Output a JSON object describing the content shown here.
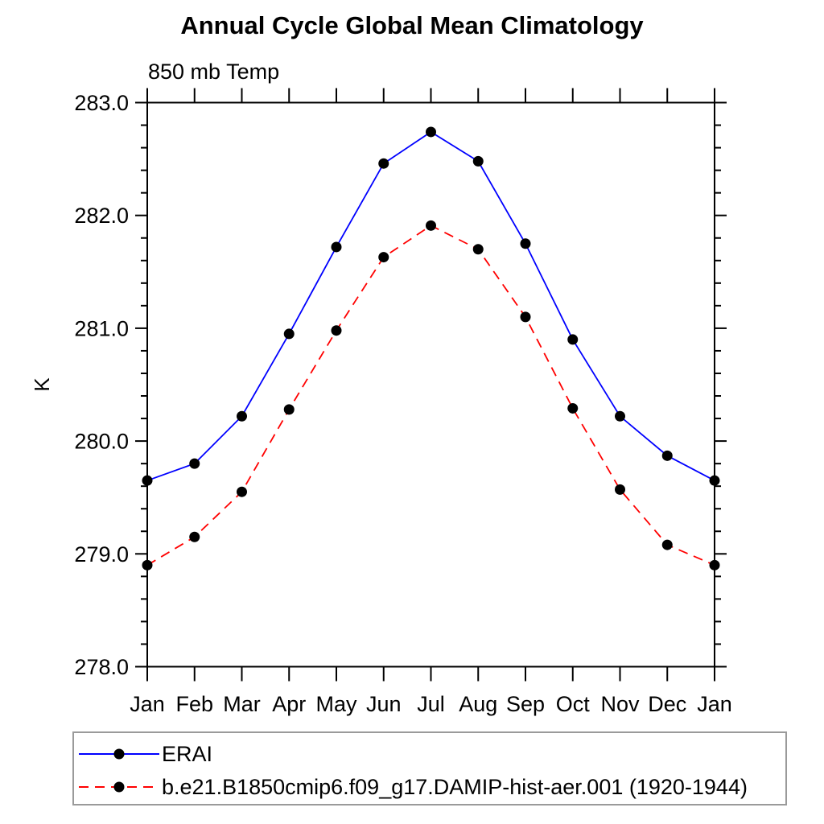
{
  "chart_data": {
    "type": "line",
    "title": "Annual Cycle Global Mean Climatology",
    "subtitle": "850 mb Temp",
    "ylabel": "K",
    "xlabel": "",
    "grid": false,
    "legend_position": "bottom-left-box",
    "x_categories": [
      "Jan",
      "Feb",
      "Mar",
      "Apr",
      "May",
      "Jun",
      "Jul",
      "Aug",
      "Sep",
      "Oct",
      "Nov",
      "Dec",
      "Jan"
    ],
    "ylim": [
      278.0,
      283.0
    ],
    "y_major_ticks": [
      278.0,
      279.0,
      280.0,
      281.0,
      282.0,
      283.0
    ],
    "y_tick_labels": [
      "278.0",
      "279.0",
      "280.0",
      "281.0",
      "282.0",
      "283.0"
    ],
    "y_minor_step": 0.2,
    "axis_color": "#000000",
    "legend_border_color": "#9a9a9a",
    "series": [
      {
        "name": "ERAI",
        "color": "#0000ff",
        "line_style": "solid",
        "marker": "filled-circle",
        "marker_color": "#000000",
        "values": [
          279.65,
          279.8,
          280.22,
          280.95,
          281.72,
          282.46,
          282.74,
          282.48,
          281.75,
          280.9,
          280.22,
          279.87,
          279.65
        ]
      },
      {
        "name": "b.e21.B1850cmip6.f09_g17.DAMIP-hist-aer.001 (1920-1944)",
        "color": "#ff0000",
        "line_style": "dashed",
        "marker": "filled-circle",
        "marker_color": "#000000",
        "values": [
          278.9,
          279.15,
          279.55,
          280.28,
          280.98,
          281.63,
          281.91,
          281.7,
          281.1,
          280.29,
          279.57,
          279.08,
          278.9
        ]
      }
    ]
  }
}
